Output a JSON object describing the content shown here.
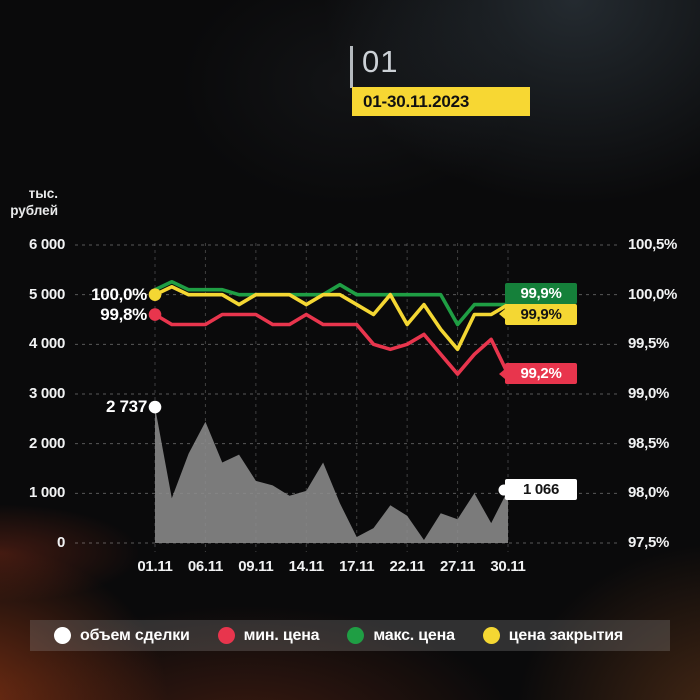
{
  "header": {
    "title": "01",
    "badge": "01-30.11.2023"
  },
  "y_axis_unit": {
    "line1": "тыс.",
    "line2": "рублей"
  },
  "chart_data": {
    "type": "mixed",
    "subtype": "area+line",
    "period_label": "01-30.11.2023",
    "n_points": 22,
    "x_tick_labels": [
      "01.11",
      "06.11",
      "09.11",
      "14.11",
      "17.11",
      "22.11",
      "27.11",
      "30.11"
    ],
    "x_tick_indices": [
      0,
      3,
      6,
      9,
      12,
      15,
      18,
      21
    ],
    "grid": true,
    "left_axis": {
      "label": "тыс. рублей",
      "min": 0,
      "max": 6000,
      "tick_values": [
        6000,
        5000,
        4000,
        3000,
        2000,
        1000,
        0
      ],
      "tick_labels": [
        "6 000",
        "5 000",
        "4 000",
        "3 000",
        "2 000",
        "1 000",
        "0"
      ]
    },
    "right_axis": {
      "label": "%",
      "min": 97.5,
      "max": 100.5,
      "tick_values": [
        100.5,
        100.0,
        99.5,
        99.0,
        98.5,
        98.0,
        97.5
      ],
      "tick_labels": [
        "100,5%",
        "100,0%",
        "99,5%",
        "99,0%",
        "98,5%",
        "98,0%",
        "97,5%"
      ]
    },
    "series": [
      {
        "id": "volume",
        "name": "объем сделки",
        "type": "area",
        "axis": "left",
        "color": "#8b8b8b",
        "values": [
          2737,
          900,
          1800,
          2440,
          1620,
          1780,
          1250,
          1160,
          950,
          1050,
          1620,
          800,
          120,
          300,
          760,
          550,
          60,
          600,
          480,
          1000,
          400,
          1066
        ]
      },
      {
        "id": "min-price",
        "name": "мин. цена",
        "type": "line",
        "axis": "right",
        "color": "#e8354d",
        "values": [
          99.8,
          99.7,
          99.7,
          99.7,
          99.8,
          99.8,
          99.8,
          99.7,
          99.7,
          99.8,
          99.7,
          99.7,
          99.7,
          99.5,
          99.45,
          99.5,
          99.6,
          99.4,
          99.2,
          99.4,
          99.55,
          99.2
        ]
      },
      {
        "id": "max-price",
        "name": "макс. цена",
        "type": "line",
        "axis": "right",
        "color": "#1f9e44",
        "values": [
          100.05,
          100.13,
          100.05,
          100.05,
          100.05,
          100.0,
          100.0,
          100.0,
          100.0,
          100.0,
          100.0,
          100.1,
          100.0,
          100.0,
          100.0,
          100.0,
          100.0,
          100.0,
          99.7,
          99.9,
          99.9,
          99.9
        ]
      },
      {
        "id": "close-price",
        "name": "цена закрытия",
        "type": "line",
        "axis": "right",
        "color": "#f4d733",
        "values": [
          100.0,
          100.08,
          100.0,
          100.0,
          100.0,
          99.9,
          100.0,
          100.0,
          100.0,
          99.9,
          100.0,
          100.0,
          99.9,
          99.8,
          100.0,
          99.7,
          99.9,
          99.65,
          99.45,
          99.8,
          99.8,
          99.9
        ]
      }
    ],
    "start_markers": [
      {
        "text": "100,0%",
        "color": "#f4d733",
        "axis": "right",
        "value": 100.0
      },
      {
        "text": "99,8%",
        "color": "#e8354d",
        "axis": "right",
        "value": 99.8
      },
      {
        "text": "2 737",
        "color": "#ffffff",
        "axis": "left",
        "value": 2737
      }
    ],
    "end_badges": [
      {
        "text": "99,9%",
        "bg": "#15803a",
        "fg": "#ffffff",
        "axis": "right",
        "value": 99.9,
        "pos": "above",
        "tail": "none"
      },
      {
        "text": "99,9%",
        "bg": "#f4d733",
        "fg": "#141414",
        "axis": "right",
        "value": 99.9,
        "pos": "below",
        "tail": "arrow"
      },
      {
        "text": "99,2%",
        "bg": "#e8354d",
        "fg": "#ffffff",
        "axis": "right",
        "value": 99.2,
        "pos": "center",
        "tail": "arrow"
      },
      {
        "text": "1 066",
        "bg": "#ffffff",
        "fg": "#141414",
        "axis": "left",
        "value": 1066,
        "pos": "center",
        "tail": "dot"
      }
    ]
  },
  "legend": {
    "items": [
      {
        "label": "объем сделки",
        "color": "#ffffff"
      },
      {
        "label": "мин. цена",
        "color": "#e8354d"
      },
      {
        "label": "макс. цена",
        "color": "#1f9e44"
      },
      {
        "label": "цена закрытия",
        "color": "#f4d733"
      }
    ]
  }
}
